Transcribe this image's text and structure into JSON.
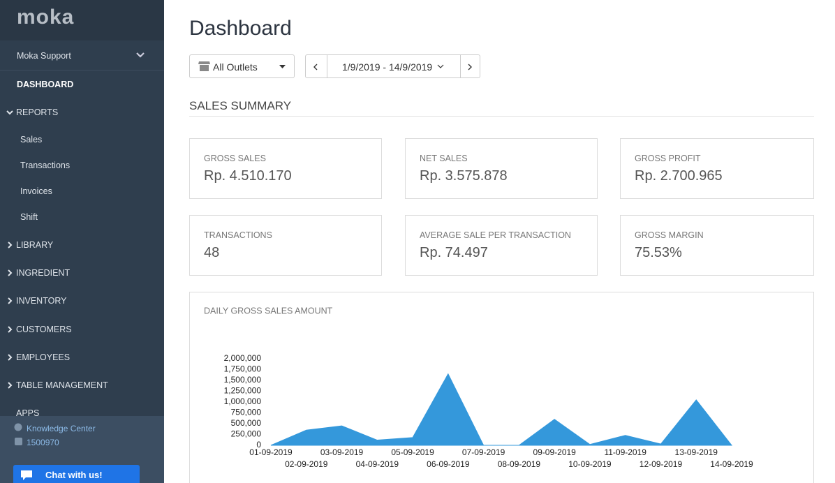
{
  "sidebar": {
    "logo": "moka",
    "account": "Moka Support",
    "menu": [
      "DASHBOARD",
      "REPORTS",
      "LIBRARY",
      "INGREDIENT",
      "INVENTORY",
      "CUSTOMERS",
      "EMPLOYEES",
      "TABLE MANAGEMENT",
      "APPS"
    ],
    "reports_sub": [
      "Sales",
      "Transactions",
      "Invoices",
      "Shift"
    ],
    "footer": {
      "knowledge": "Knowledge Center",
      "phone": "1500970",
      "chat": "Chat with us!"
    }
  },
  "header": {
    "title": "Dashboard",
    "outlet": "All Outlets",
    "date_range": "1/9/2019 - 14/9/2019"
  },
  "section_title": "SALES SUMMARY",
  "cards": [
    {
      "label": "GROSS SALES",
      "value": "Rp. 4.510.170"
    },
    {
      "label": "NET SALES",
      "value": "Rp. 3.575.878"
    },
    {
      "label": "GROSS PROFIT",
      "value": "Rp. 2.700.965"
    },
    {
      "label": "TRANSACTIONS",
      "value": "48"
    },
    {
      "label": "AVERAGE SALE PER TRANSACTION",
      "value": "Rp. 74.497"
    },
    {
      "label": "GROSS MARGIN",
      "value": "75.53%"
    }
  ],
  "chart_data": {
    "type": "area",
    "title": "DAILY GROSS SALES AMOUNT",
    "categories": [
      "01-09-2019",
      "02-09-2019",
      "03-09-2019",
      "04-09-2019",
      "05-09-2019",
      "06-09-2019",
      "07-09-2019",
      "08-09-2019",
      "09-09-2019",
      "10-09-2019",
      "11-09-2019",
      "12-09-2019",
      "13-09-2019",
      "14-09-2019"
    ],
    "values": [
      0,
      350000,
      450000,
      120000,
      180000,
      1650000,
      0,
      0,
      600000,
      20000,
      230000,
      30000,
      1050000,
      0
    ],
    "color": "#3498db",
    "ylim": [
      0,
      2000000
    ],
    "yticks": [
      0,
      {
        "value": 250000,
        "label": "250,000"
      },
      {
        "value": 500000,
        "label": "500,000"
      },
      {
        "value": 750000,
        "label": "750,000"
      },
      {
        "value": 1000000,
        "label": "1,000,000"
      },
      {
        "value": 1250000,
        "label": "1,250,000"
      },
      {
        "value": 1500000,
        "label": "1,500,000"
      },
      {
        "value": 1750000,
        "label": "1,750,000"
      },
      {
        "value": 2000000,
        "label": "2,000,000"
      }
    ]
  }
}
